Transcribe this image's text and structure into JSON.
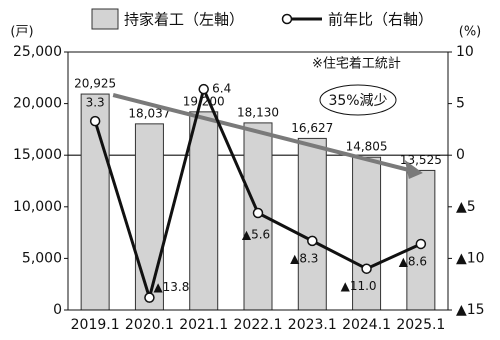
{
  "chart_data": {
    "type": "bar",
    "categories": [
      "2019.1",
      "2020.1",
      "2021.1",
      "2022.1",
      "2023.1",
      "2024.1",
      "2025.1"
    ],
    "series": [
      {
        "name": "持家着工（左軸）",
        "type": "bar",
        "color": "#d3d3d3",
        "values": [
          20925,
          18037,
          19200,
          18130,
          16627,
          14805,
          13525
        ],
        "value_labels": [
          "20,925",
          "18,037",
          "19,200",
          "18,130",
          "16,627",
          "14,805",
          "13,525"
        ]
      },
      {
        "name": "前年比（右軸）",
        "type": "line",
        "axis": "y2",
        "color": "#111111",
        "values": [
          3.3,
          -13.8,
          6.4,
          -5.6,
          -8.3,
          -11.0,
          -8.6
        ],
        "value_labels": [
          "3.3",
          "▲13.8",
          "6.4",
          "▲5.6",
          "▲8.3",
          "▲11.0",
          "▲8.6"
        ]
      }
    ],
    "ylim": [
      0,
      25000
    ],
    "yticks": [
      0,
      {
        "value": 5000,
        "label": "5,000"
      },
      {
        "value": 10000,
        "label": "10,000"
      },
      {
        "value": 15000,
        "label": "15,000"
      },
      {
        "value": 20000,
        "label": "20,000"
      },
      {
        "value": 25000,
        "label": "25,000"
      }
    ],
    "y2lim": [
      -15,
      10
    ],
    "y2ticks": [
      10,
      5,
      0,
      {
        "value": -5,
        "label": "▲5"
      },
      {
        "value": -10,
        "label": "▲10"
      },
      {
        "value": -15,
        "label": "▲15"
      }
    ],
    "y_unit": "(戸)",
    "y2_unit": "(%)",
    "annotations": [
      "※住宅着工統計",
      "35%減少"
    ]
  }
}
